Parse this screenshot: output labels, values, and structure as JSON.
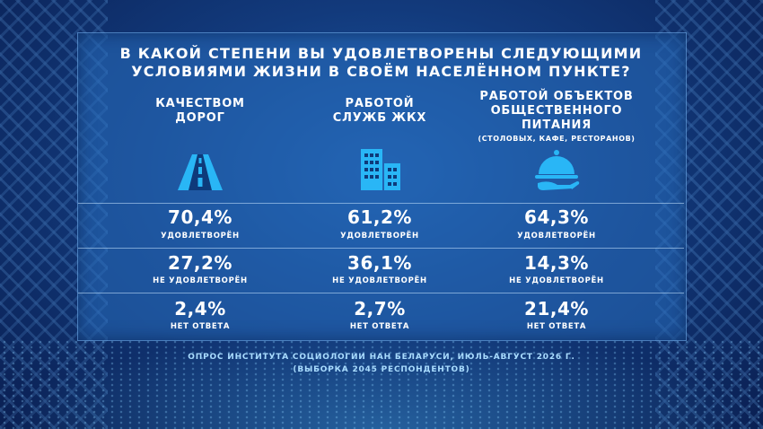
{
  "title": {
    "line1": "В КАКОЙ СТЕПЕНИ ВЫ УДОВЛЕТВОРЕНЫ СЛЕДУЮЩИМИ",
    "line2": "УСЛОВИЯМИ ЖИЗНИ В СВОЁМ НАСЕЛЁННОМ ПУНКТЕ?"
  },
  "columns": [
    {
      "heading_line1": "КАЧЕСТВОМ",
      "heading_line2": "ДОРОГ",
      "icon": "road-icon",
      "rows": [
        {
          "value": "70,4%",
          "label": "УДОВЛЕТВОРЁН"
        },
        {
          "value": "27,2%",
          "label": "НЕ УДОВЛЕТВОРЁН"
        },
        {
          "value": "2,4%",
          "label": "НЕТ ОТВЕТА"
        }
      ]
    },
    {
      "heading_line1": "РАБОТОЙ",
      "heading_line2": "СЛУЖБ ЖКХ",
      "icon": "buildings-icon",
      "rows": [
        {
          "value": "61,2%",
          "label": "УДОВЛЕТВОРЁН"
        },
        {
          "value": "36,1%",
          "label": "НЕ УДОВЛЕТВОРЁН"
        },
        {
          "value": "2,7%",
          "label": "НЕТ ОТВЕТА"
        }
      ]
    },
    {
      "heading_line1": "РАБОТОЙ ОБЪЕКТОВ",
      "heading_line2": "ОБЩЕСТВЕННОГО ПИТАНИЯ",
      "heading_sub": "(СТОЛОВЫХ, КАФЕ, РЕСТОРАНОВ)",
      "icon": "serving-cloche-icon",
      "rows": [
        {
          "value": "64,3%",
          "label": "УДОВЛЕТВОРЁН"
        },
        {
          "value": "14,3%",
          "label": "НЕ УДОВЛЕТВОРЁН"
        },
        {
          "value": "21,4%",
          "label": "НЕТ ОТВЕТА"
        }
      ]
    }
  ],
  "footer": {
    "line1": "ОПРОС ИНСТИТУТА СОЦИОЛОГИИ НАН БЕЛАРУСИ, ИЮЛЬ-АВГУСТ 2026 Г.",
    "line2": "(ВЫБОРКА 2045 РЕСПОНДЕНТОВ)"
  },
  "colors": {
    "icon": "#29b6f6",
    "footer_text": "#a9dcff"
  }
}
